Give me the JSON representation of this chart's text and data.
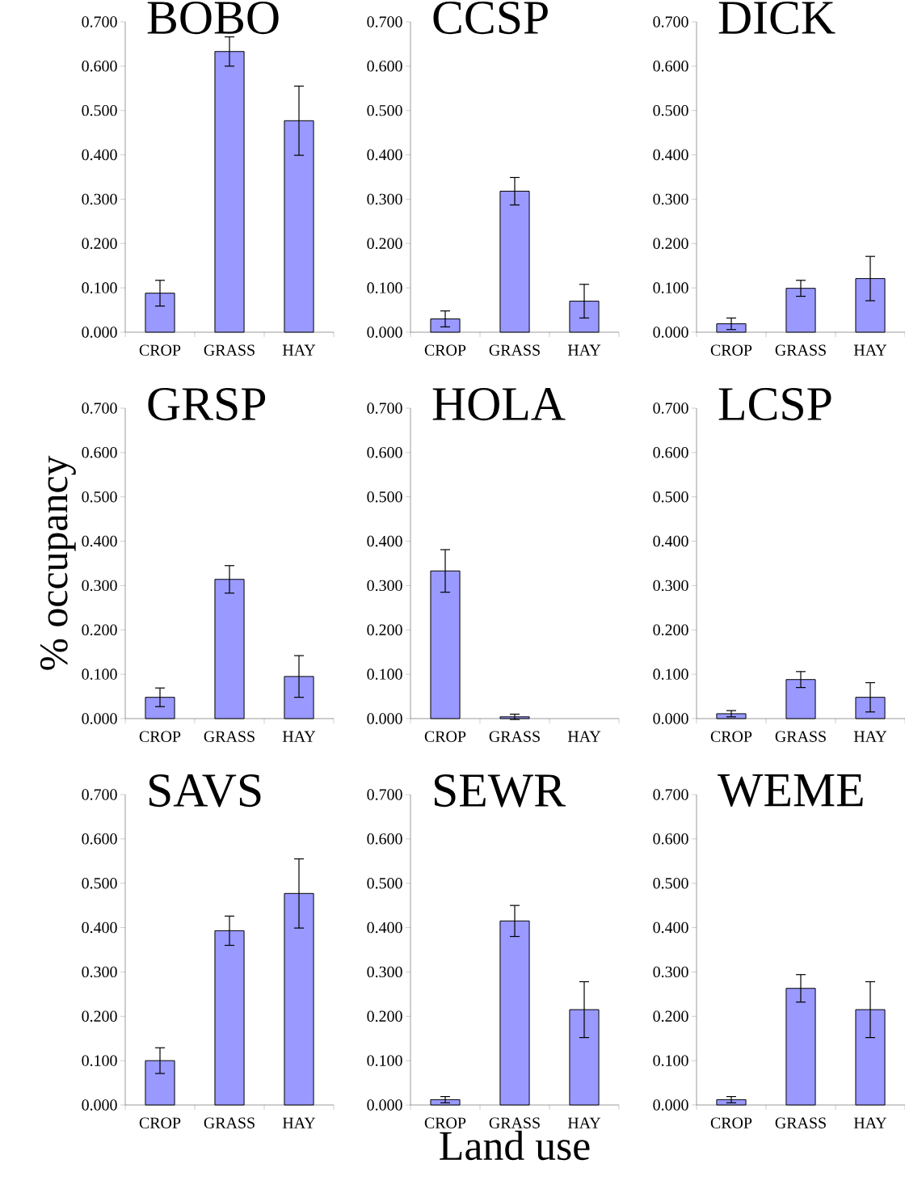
{
  "chart_data": [
    {
      "type": "bar",
      "title": "BOBO",
      "categories": [
        "CROP",
        "GRASS",
        "HAY"
      ],
      "values": [
        0.088,
        0.633,
        0.477
      ],
      "errors": [
        0.029,
        0.033,
        0.078
      ],
      "color": "#9999ff",
      "ylim": [
        0,
        0.7
      ],
      "yticks": [
        {
          "value": 0,
          "label": "0.000"
        },
        {
          "value": 0.1,
          "label": "0.100"
        },
        {
          "value": 0.2,
          "label": "0.200"
        },
        {
          "value": 0.3,
          "label": "0.300"
        },
        {
          "value": 0.4,
          "label": "0.400"
        },
        {
          "value": 0.5,
          "label": "0.500"
        },
        {
          "value": 0.6,
          "label": "0.600"
        },
        {
          "value": 0.7,
          "label": "0.700"
        }
      ]
    },
    {
      "type": "bar",
      "title": "CCSP",
      "categories": [
        "CROP",
        "GRASS",
        "HAY"
      ],
      "values": [
        0.03,
        0.318,
        0.07
      ],
      "errors": [
        0.018,
        0.031,
        0.038
      ],
      "color": "#9999ff",
      "ylim": [
        0,
        0.7
      ],
      "yticks": [
        {
          "value": 0,
          "label": "0.000"
        },
        {
          "value": 0.1,
          "label": "0.100"
        },
        {
          "value": 0.2,
          "label": "0.200"
        },
        {
          "value": 0.3,
          "label": "0.300"
        },
        {
          "value": 0.4,
          "label": "0.400"
        },
        {
          "value": 0.5,
          "label": "0.500"
        },
        {
          "value": 0.6,
          "label": "0.600"
        },
        {
          "value": 0.7,
          "label": "0.700"
        }
      ]
    },
    {
      "type": "bar",
      "title": "DICK",
      "categories": [
        "CROP",
        "GRASS",
        "HAY"
      ],
      "values": [
        0.019,
        0.099,
        0.121
      ],
      "errors": [
        0.013,
        0.018,
        0.05
      ],
      "color": "#9999ff",
      "ylim": [
        0,
        0.7
      ],
      "yticks": [
        {
          "value": 0,
          "label": "0.000"
        },
        {
          "value": 0.1,
          "label": "0.100"
        },
        {
          "value": 0.2,
          "label": "0.200"
        },
        {
          "value": 0.3,
          "label": "0.300"
        },
        {
          "value": 0.4,
          "label": "0.400"
        },
        {
          "value": 0.5,
          "label": "0.500"
        },
        {
          "value": 0.6,
          "label": "0.600"
        },
        {
          "value": 0.7,
          "label": "0.700"
        }
      ]
    },
    {
      "type": "bar",
      "title": "GRSP",
      "ylabel": "% occupancy",
      "categories": [
        "CROP",
        "GRASS",
        "HAY"
      ],
      "values": [
        0.048,
        0.314,
        0.095
      ],
      "errors": [
        0.021,
        0.031,
        0.047
      ],
      "color": "#9999ff",
      "ylim": [
        0,
        0.7
      ],
      "yticks": [
        {
          "value": 0,
          "label": "0.000"
        },
        {
          "value": 0.1,
          "label": "0.100"
        },
        {
          "value": 0.2,
          "label": "0.200"
        },
        {
          "value": 0.3,
          "label": "0.300"
        },
        {
          "value": 0.4,
          "label": "0.400"
        },
        {
          "value": 0.5,
          "label": "0.500"
        },
        {
          "value": 0.6,
          "label": "0.600"
        },
        {
          "value": 0.7,
          "label": "0.700"
        }
      ]
    },
    {
      "type": "bar",
      "title": "HOLA",
      "categories": [
        "CROP",
        "GRASS",
        "HAY"
      ],
      "values": [
        0.333,
        0.004,
        null
      ],
      "errors": [
        0.048,
        0.006,
        null
      ],
      "color": "#9999ff",
      "ylim": [
        0,
        0.7
      ],
      "yticks": [
        {
          "value": 0,
          "label": "0.000"
        },
        {
          "value": 0.1,
          "label": "0.100"
        },
        {
          "value": 0.2,
          "label": "0.200"
        },
        {
          "value": 0.3,
          "label": "0.300"
        },
        {
          "value": 0.4,
          "label": "0.400"
        },
        {
          "value": 0.5,
          "label": "0.500"
        },
        {
          "value": 0.6,
          "label": "0.600"
        },
        {
          "value": 0.7,
          "label": "0.700"
        }
      ]
    },
    {
      "type": "bar",
      "title": "LCSP",
      "categories": [
        "CROP",
        "GRASS",
        "HAY"
      ],
      "values": [
        0.011,
        0.088,
        0.048
      ],
      "errors": [
        0.007,
        0.018,
        0.033
      ],
      "color": "#9999ff",
      "ylim": [
        0,
        0.7
      ],
      "yticks": [
        {
          "value": 0,
          "label": "0.000"
        },
        {
          "value": 0.1,
          "label": "0.100"
        },
        {
          "value": 0.2,
          "label": "0.200"
        },
        {
          "value": 0.3,
          "label": "0.300"
        },
        {
          "value": 0.4,
          "label": "0.400"
        },
        {
          "value": 0.5,
          "label": "0.500"
        },
        {
          "value": 0.6,
          "label": "0.600"
        },
        {
          "value": 0.7,
          "label": "0.700"
        }
      ]
    },
    {
      "type": "bar",
      "title": "SAVS",
      "categories": [
        "CROP",
        "GRASS",
        "HAY"
      ],
      "values": [
        0.1,
        0.393,
        0.477
      ],
      "errors": [
        0.029,
        0.033,
        0.078
      ],
      "color": "#9999ff",
      "ylim": [
        0,
        0.7
      ],
      "yticks": [
        {
          "value": 0,
          "label": "0.000"
        },
        {
          "value": 0.1,
          "label": "0.100"
        },
        {
          "value": 0.2,
          "label": "0.200"
        },
        {
          "value": 0.3,
          "label": "0.300"
        },
        {
          "value": 0.4,
          "label": "0.400"
        },
        {
          "value": 0.5,
          "label": "0.500"
        },
        {
          "value": 0.6,
          "label": "0.600"
        },
        {
          "value": 0.7,
          "label": "0.700"
        }
      ]
    },
    {
      "type": "bar",
      "title": "SEWR",
      "xlabel": "Land use",
      "categories": [
        "CROP",
        "GRASS",
        "HAY"
      ],
      "values": [
        0.012,
        0.415,
        0.215
      ],
      "errors": [
        0.007,
        0.035,
        0.063
      ],
      "color": "#9999ff",
      "ylim": [
        0,
        0.7
      ],
      "yticks": [
        {
          "value": 0,
          "label": "0.000"
        },
        {
          "value": 0.1,
          "label": "0.100"
        },
        {
          "value": 0.2,
          "label": "0.200"
        },
        {
          "value": 0.3,
          "label": "0.300"
        },
        {
          "value": 0.4,
          "label": "0.400"
        },
        {
          "value": 0.5,
          "label": "0.500"
        },
        {
          "value": 0.6,
          "label": "0.600"
        },
        {
          "value": 0.7,
          "label": "0.700"
        }
      ]
    },
    {
      "type": "bar",
      "title": "WEME",
      "categories": [
        "CROP",
        "GRASS",
        "HAY"
      ],
      "values": [
        0.012,
        0.263,
        0.215
      ],
      "errors": [
        0.007,
        0.031,
        0.063
      ],
      "color": "#9999ff",
      "ylim": [
        0,
        0.7
      ],
      "yticks": [
        {
          "value": 0,
          "label": "0.000"
        },
        {
          "value": 0.1,
          "label": "0.100"
        },
        {
          "value": 0.2,
          "label": "0.200"
        },
        {
          "value": 0.3,
          "label": "0.300"
        },
        {
          "value": 0.4,
          "label": "0.400"
        },
        {
          "value": 0.5,
          "label": "0.500"
        },
        {
          "value": 0.6,
          "label": "0.600"
        },
        {
          "value": 0.7,
          "label": "0.700"
        }
      ]
    }
  ]
}
